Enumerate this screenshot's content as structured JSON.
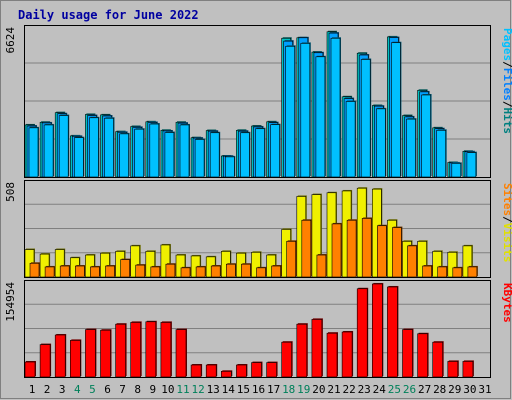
{
  "chart_data": {
    "type": "bar",
    "title": "Daily usage for June 2022",
    "days": [
      "1",
      "2",
      "3",
      "4",
      "5",
      "6",
      "7",
      "8",
      "9",
      "10",
      "11",
      "12",
      "13",
      "14",
      "15",
      "16",
      "17",
      "18",
      "19",
      "20",
      "21",
      "22",
      "23",
      "24",
      "25",
      "26",
      "27",
      "28",
      "29",
      "30",
      "31"
    ],
    "weekend_days": [
      "4",
      "5",
      "11",
      "12",
      "18",
      "19",
      "25",
      "26"
    ],
    "panels": [
      {
        "name": "top",
        "max_label": "6624",
        "ymax": 6624,
        "series": [
          {
            "name": "Hits",
            "color": "#00c0c0",
            "values": [
              2330,
              2450,
              2880,
              1840,
              2800,
              2780,
              2030,
              2260,
              2470,
              2090,
              2450,
              1760,
              2080,
              940,
              2090,
              2280,
              2470,
              6210,
              6230,
              5590,
              6500,
              3590,
              5540,
              3200,
              6270,
              2750,
              3880,
              2200,
              650,
              1150,
              null
            ]
          },
          {
            "name": "Files",
            "color": "#00a0ff",
            "values": [
              2280,
              2420,
              2830,
              1820,
              2750,
              2730,
              2000,
              2220,
              2440,
              2060,
              2410,
              1740,
              2050,
              930,
              2050,
              2240,
              2430,
              6080,
              6230,
              5560,
              6440,
              3510,
              5460,
              3170,
              6240,
              2690,
              3810,
              2160,
              630,
              1130,
              null
            ]
          },
          {
            "name": "Pages",
            "color": "#00c0ff",
            "values": [
              2200,
              2330,
              2750,
              1760,
              2650,
              2630,
              1930,
              2140,
              2370,
              1990,
              2330,
              1680,
              1980,
              900,
              1980,
              2160,
              2340,
              5850,
              5980,
              5380,
              6210,
              3380,
              5260,
              3050,
              6010,
              2590,
              3670,
              2090,
              610,
              1090,
              null
            ]
          }
        ]
      },
      {
        "name": "middle",
        "max_label": "508",
        "ymax": 508,
        "series": [
          {
            "name": "Visits",
            "color": "#f0f000",
            "values": [
              150,
              125,
              150,
              105,
              120,
              130,
              140,
              170,
              140,
              175,
              120,
              115,
              110,
              140,
              130,
              135,
              120,
              260,
              440,
              450,
              460,
              470,
              485,
              480,
              310,
              195,
              195,
              140,
              135,
              170,
              null
            ]
          },
          {
            "name": "Sites",
            "color": "#ff8000",
            "values": [
              75,
              55,
              60,
              60,
              55,
              60,
              95,
              65,
              55,
              70,
              50,
              55,
              60,
              70,
              70,
              50,
              60,
              195,
              310,
              120,
              290,
              310,
              320,
              280,
              270,
              170,
              60,
              55,
              50,
              55,
              null
            ]
          }
        ]
      },
      {
        "name": "bottom",
        "max_label": "154954",
        "ymax": 154954,
        "series": [
          {
            "name": "KBytes",
            "color": "#ff0000",
            "values": [
              25000,
              54000,
              70000,
              61000,
              79000,
              78000,
              88000,
              91000,
              92000,
              91000,
              79000,
              20000,
              20000,
              9500,
              20000,
              24000,
              24000,
              58000,
              88000,
              96000,
              73000,
              75000,
              147000,
              155000,
              150000,
              79000,
              72000,
              58000,
              26000,
              26000,
              null
            ]
          }
        ]
      }
    ],
    "side_labels": [
      {
        "panel": "top",
        "parts": [
          {
            "text": "Pages",
            "color": "#00c0ff"
          },
          {
            "text": "/",
            "color": "#000000"
          },
          {
            "text": "Files",
            "color": "#0080ff"
          },
          {
            "text": "/",
            "color": "#000000"
          },
          {
            "text": "Hits",
            "color": "#008080"
          }
        ]
      },
      {
        "panel": "middle",
        "parts": [
          {
            "text": "Sites",
            "color": "#ff8000"
          },
          {
            "text": "/",
            "color": "#000000"
          },
          {
            "text": "Visits",
            "color": "#e0e000"
          }
        ]
      },
      {
        "panel": "bottom",
        "parts": [
          {
            "text": "KBytes",
            "color": "#ff0000"
          }
        ]
      }
    ],
    "grid": true,
    "colors": {
      "background": "#c0c0c0",
      "title": "#0000a0",
      "weekday": "#000000",
      "weekend": "#00805a"
    }
  }
}
